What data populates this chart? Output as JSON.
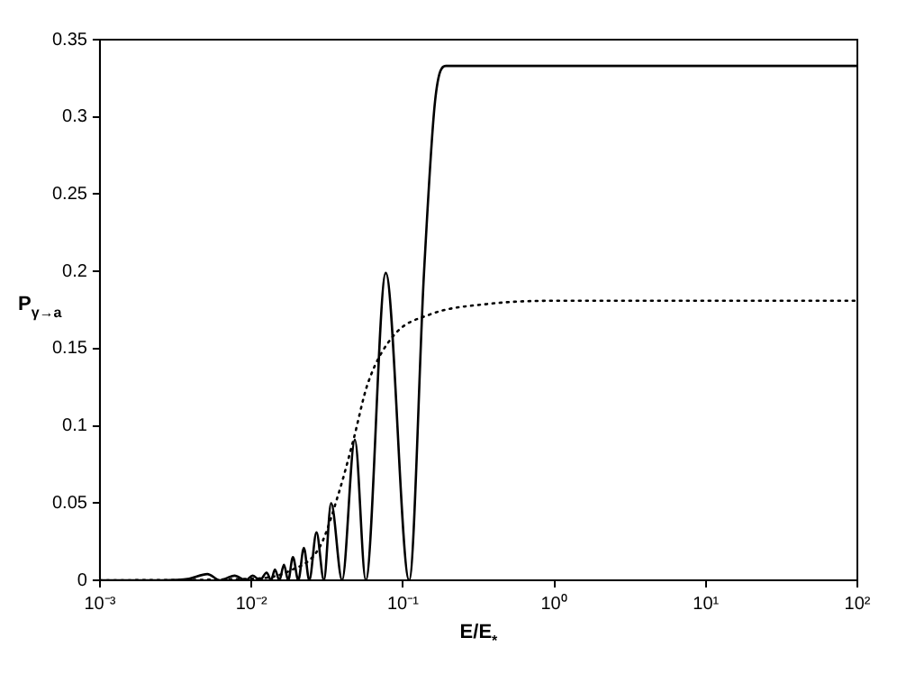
{
  "chart_data": {
    "type": "line",
    "xlabel": "E/E$_{*}$",
    "ylabel": "P$_{γ→a}$",
    "log": "x",
    "grid": false,
    "legend": false,
    "marker": "none",
    "xlim": [
      0.001,
      100
    ],
    "xticks": [
      {
        "value": 0.001,
        "label": "10⁻³"
      },
      {
        "value": 0.01,
        "label": "10⁻²"
      },
      {
        "value": 0.1,
        "label": "10⁻¹"
      },
      {
        "value": 1,
        "label": "10⁰"
      },
      {
        "value": 10,
        "label": "10¹"
      },
      {
        "value": 100,
        "label": "10²"
      }
    ],
    "ylim": [
      0,
      0.35
    ],
    "yticks": [
      0,
      0.05,
      0.1,
      0.15,
      0.2,
      0.25,
      0.3,
      0.35
    ],
    "series": [
      {
        "color": "#000000",
        "line_style": "solid",
        "x": [
          0.001,
          0.00256,
          0.00388,
          0.00512,
          0.00621,
          0.00774,
          0.00916,
          0.0102,
          0.0114,
          0.0126,
          0.0135,
          0.0143,
          0.0153,
          0.0164,
          0.0175,
          0.0188,
          0.0204,
          0.0222,
          0.0241,
          0.0269,
          0.0301,
          0.0336,
          0.0397,
          0.0482,
          0.0569,
          0.0771,
          0.11,
          0.138,
          0.163,
          0.192,
          100
        ],
        "values": [
          0,
          0,
          0.001,
          0.004,
          0,
          0.003,
          0,
          0.003,
          0,
          0.005,
          0,
          0.007,
          0,
          0.01,
          0,
          0.015,
          0,
          0.021,
          0,
          0.031,
          0,
          0.05,
          0,
          0.091,
          0,
          0.199,
          0,
          0.2,
          0.31,
          0.333,
          0.333
        ]
      },
      {
        "color": "#000000",
        "line_style": "dotted",
        "x": [
          0.001,
          0.0102,
          0.0178,
          0.0284,
          0.0376,
          0.0469,
          0.0585,
          0.0861,
          0.15,
          0.373,
          1.13,
          100
        ],
        "values": [
          0,
          0.001,
          0.006,
          0.022,
          0.056,
          0.09,
          0.127,
          0.158,
          0.172,
          0.179,
          0.181,
          0.181
        ]
      }
    ]
  }
}
